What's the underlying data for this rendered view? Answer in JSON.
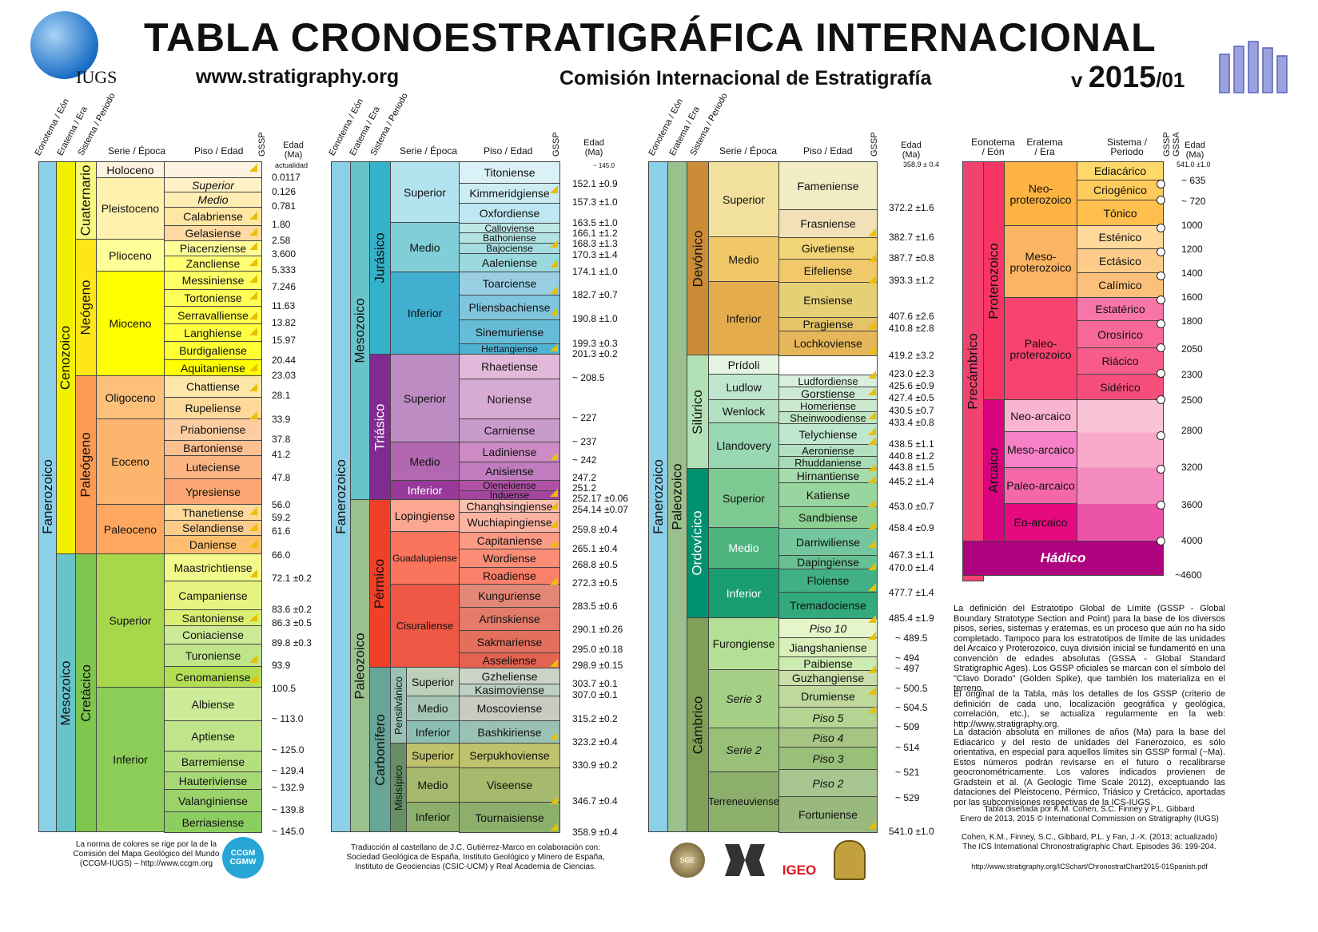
{
  "header": {
    "title": "TABLA CRONOESTRATIGRÁFICA INTERNACIONAL",
    "url": "www.stratigraphy.org",
    "commission": "Comisión Internacional de Estratigrafía",
    "version_prefix": "v",
    "version_year": "2015",
    "version_suffix": "/01",
    "iugs": "IUGS"
  },
  "column_headers": {
    "eonotema": "Eonotema / Eón",
    "eratema": "Eratema / Era",
    "sistema": "Sistema / Periodo",
    "serie": "Serie / Época",
    "piso": "Piso / Edad",
    "gssp": "GSSP",
    "edad": "Edad (Ma)",
    "actualidad": "actualidad",
    "gssa": "GSSA"
  },
  "panel1": {
    "eon": "Fanerozoico",
    "eras": [
      "Cenozoico",
      "Mesozoico"
    ],
    "systems": [
      "Cuaternario",
      "Neógeno",
      "Paleógeno",
      "Cretácico"
    ],
    "series": [
      "Holoceno",
      "Pleistoceno",
      "Plioceno",
      "Mioceno",
      "Oligoceno",
      "Eoceno",
      "Paleoceno",
      "Superior",
      "Inferior"
    ],
    "stages": [
      "Superior",
      "Medio",
      "Calabriense",
      "Gelasiense",
      "Piacenziense",
      "Zancliense",
      "Messiniense",
      "Tortoniense",
      "Serravalliense",
      "Langhiense",
      "Burdigaliense",
      "Aquitaniense",
      "Chattiense",
      "Rupeliense",
      "Priaboniense",
      "Bartoniense",
      "Luteciense",
      "Ypresiense",
      "Thanetiense",
      "Selandiense",
      "Daniense",
      "Maastrichtiense",
      "Campaniense",
      "Santoniense",
      "Coniaciense",
      "Turoniense",
      "Cenomaniense",
      "Albiense",
      "Aptiense",
      "Barremiense",
      "Hauteriviense",
      "Valanginiense",
      "Berriasiense"
    ],
    "ages": [
      "0.0117",
      "0.126",
      "0.781",
      "1.80",
      "2.58",
      "3.600",
      "5.333",
      "7.246",
      "11.63",
      "13.82",
      "15.97",
      "20.44",
      "23.03",
      "28.1",
      "33.9",
      "37.8",
      "41.2",
      "47.8",
      "56.0",
      "59.2",
      "61.6",
      "66.0",
      "72.1 ±0.2",
      "83.6 ±0.2",
      "86.3 ±0.5",
      "89.8 ±0.3",
      "93.9",
      "100.5",
      "~ 113.0",
      "~ 125.0",
      "~ 129.4",
      "~ 132.9",
      "~ 139.8",
      "~ 145.0"
    ]
  },
  "panel2": {
    "eon": "Fanerozoico",
    "eras": [
      "Mesozoico",
      "Paleozoico"
    ],
    "systems": [
      "Jurásico",
      "Triásico",
      "Pérmico",
      "Carbonífero"
    ],
    "subsystems": [
      "Pensilvánico",
      "Misisípico"
    ],
    "series": [
      "Superior",
      "Medio",
      "Inferior",
      "Superior",
      "Medio",
      "Inferior",
      "Lopingiense",
      "Guadalupiense",
      "Cisuraliense",
      "Superior",
      "Medio",
      "Inferior",
      "Superior",
      "Medio",
      "Inferior"
    ],
    "stages": [
      "Titoniense",
      "Kimmeridgiense",
      "Oxfordiense",
      "Calloviense",
      "Bathoniense",
      "Bajociense",
      "Aaleniense",
      "Toarciense",
      "Pliensbachiense",
      "Sinemuriense",
      "Hettangiense",
      "Rhaetiense",
      "Noriense",
      "Carniense",
      "Ladiniense",
      "Anisiense",
      "Olenekiense",
      "Induense",
      "Changhsingiense",
      "Wuchiapingiense",
      "Capitaniense",
      "Wordiense",
      "Roadiense",
      "Kunguriense",
      "Artinskiense",
      "Sakmariense",
      "Asseliense",
      "Gzheliense",
      "Kasimoviense",
      "Moscoviense",
      "Bashkiriense",
      "Serpukhoviense",
      "Viseense",
      "Tournaisiense"
    ],
    "ages": [
      "~ 145.0",
      "152.1 ±0.9",
      "157.3 ±1.0",
      "163.5 ±1.0",
      "166.1 ±1.2",
      "168.3 ±1.3",
      "170.3 ±1.4",
      "174.1 ±1.0",
      "182.7 ±0.7",
      "190.8 ±1.0",
      "199.3 ±0.3",
      "201.3 ±0.2",
      "~ 208.5",
      "~ 227",
      "~ 237",
      "~ 242",
      "247.2",
      "251.2",
      "252.17 ±0.06",
      "254.14 ±0.07",
      "259.8 ±0.4",
      "265.1 ±0.4",
      "268.8 ±0.5",
      "272.3 ±0.5",
      "283.5 ±0.6",
      "290.1 ±0.26",
      "295.0 ±0.18",
      "298.9 ±0.15",
      "303.7 ±0.1",
      "307.0 ±0.1",
      "315.2 ±0.2",
      "323.2 ±0.4",
      "330.9 ±0.2",
      "346.7 ±0.4",
      "358.9 ±0.4"
    ]
  },
  "panel3": {
    "eon": "Fanerozoico",
    "era": "Paleozoico",
    "systems": [
      "Devónico",
      "Silúrico",
      "Ordovícico",
      "Cámbrico"
    ],
    "series": [
      "Superior",
      "Medio",
      "Inferior",
      "Prídoli",
      "Ludlow",
      "Wenlock",
      "Llandovery",
      "Superior",
      "Medio",
      "Inferior",
      "Furongiense",
      "Serie 3",
      "Serie 2",
      "Terreneuviense"
    ],
    "stages": [
      "Fameniense",
      "Frasniense",
      "Givetiense",
      "Eifeliense",
      "Emsiense",
      "Pragiense",
      "Lochkoviense",
      "",
      "Ludfordiense",
      "Gorstiense",
      "Homeriense",
      "Sheinwoodiense",
      "Telychiense",
      "Aeroniense",
      "Rhuddaniense",
      "Hirnantiense",
      "Katiense",
      "Sandbiense",
      "Darriwiliense",
      "Dapingiense",
      "Floiense",
      "Tremadociense",
      "Piso 10",
      "Jiangshaniense",
      "Paibiense",
      "Guzhangiense",
      "Drumiense",
      "Piso 5",
      "Piso 4",
      "Piso 3",
      "Piso 2",
      "Fortuniense"
    ],
    "ages": [
      "358.9 ± 0.4",
      "372.2 ±1.6",
      "382.7 ±1.6",
      "387.7 ±0.8",
      "393.3 ±1.2",
      "407.6 ±2.6",
      "410.8 ±2.8",
      "419.2 ±3.2",
      "423.0 ±2.3",
      "425.6 ±0.9",
      "427.4 ±0.5",
      "430.5 ±0.7",
      "433.4 ±0.8",
      "438.5 ±1.1",
      "440.8 ±1.2",
      "443.8 ±1.5",
      "445.2 ±1.4",
      "453.0 ±0.7",
      "458.4 ±0.9",
      "467.3 ±1.1",
      "470.0 ±1.4",
      "477.7 ±1.4",
      "485.4 ±1.9",
      "~ 489.5",
      "~ 494",
      "~ 497",
      "~ 500.5",
      "~ 504.5",
      "~ 509",
      "~ 514",
      "~ 521",
      "~ 529",
      "541.0 ±1.0"
    ]
  },
  "panel4": {
    "eon": "Precámbrico",
    "eons": [
      "Proterozoico",
      "Arcaico"
    ],
    "eras": [
      "Neo-proterozoico",
      "Meso-proterozoico",
      "Paleo-proterozoico",
      "Neo-arcaico",
      "Meso-arcaico",
      "Paleo-arcaico",
      "Eo-arcaico"
    ],
    "hadico": "Hádico",
    "systems": [
      "Ediacárico",
      "Criogénico",
      "Tónico",
      "Esténico",
      "Ectásico",
      "Calímico",
      "Estatérico",
      "Orosírico",
      "Riácico",
      "Sidérico"
    ],
    "ages": [
      "541.0 ±1.0",
      "~ 635",
      "~ 720",
      "1000",
      "1200",
      "1400",
      "1600",
      "1800",
      "2050",
      "2300",
      "2500",
      "2800",
      "3200",
      "3600",
      "4000",
      "~4600"
    ]
  },
  "notes": {
    "p1": "La definición del Estratotipo Global de Límite (GSSP - Global Boundary Stratotype Section and Point) para la base de los diversos pisos, series, sistemas y eratemas, es un proceso que aún no ha sido completado. Tampoco para los estratotipos de límite de las unidades del Arcaico y Proterozoico, cuya división inicial se fundamentó en una convención de edades absolutas (GSSA - Global Standard Stratigraphic Ages). Los GSSP oficiales se marcan con el símbolo del \"Clavo Dorado\" (Golden Spike), que también los materializa en el terreno.",
    "p2": "El original de la Tabla, más los detalles de los GSSP (criterio de definición de cada uno, localización geográfica y geológica, correlación, etc.), se actualiza regularmente en la web: http://www.stratigraphy.org.",
    "p3": "La datación absoluta en millones de años (Ma) para la base del Ediacárico y del resto de unidades del Fanerozoico, es sólo orientativa, en especial para aquellos límites sin GSSP formal (~Ma). Estos números podrán revisarse en el futuro o recalibrarse geocronométricamente. Los valores indicados provienen de Gradstein et al. (A Geologic Time Scale 2012), exceptuando las dataciones del Pleistoceno, Pérmico, Triásico y Cretácico, aportadas por las subcomisiones respectivas de la ICS-IUGS.",
    "design": "Tabla diseñada por K.M. Cohen, S.C. Finney y P.L. Gibbard",
    "date": "Enero de 2013, 2015 © International Commission on Stratigraphy (IUGS)",
    "citation": "Cohen, K.M., Finney, S.C., Gibbard, P.L. y Fan, J.-X. (2013; actualizado) The ICS International Chronostratigraphic Chart. Episodes 36: 199-204.",
    "pdf_url": "http://www.stratigraphy.org/ICSchart/ChronostratChart2015-01Spanish.pdf",
    "colors_norm": "La norma de colores se rige por la de la Comisión del Mapa Geológico del Mundo (CCGM-IUGS) – http://www.ccgm.org",
    "translation": "Traducción al castellano de J.C. Gutiérrez-Marco en colaboración con: Sociedad Geológica de España, Instituto Geológico y Minero de España, Instituto de Geociencias (CSIC-UCM) y Real Academia de Ciencias.",
    "igeo": "IGEO",
    "sge": "SGE",
    "ccgm": "CCGM CGMW"
  }
}
